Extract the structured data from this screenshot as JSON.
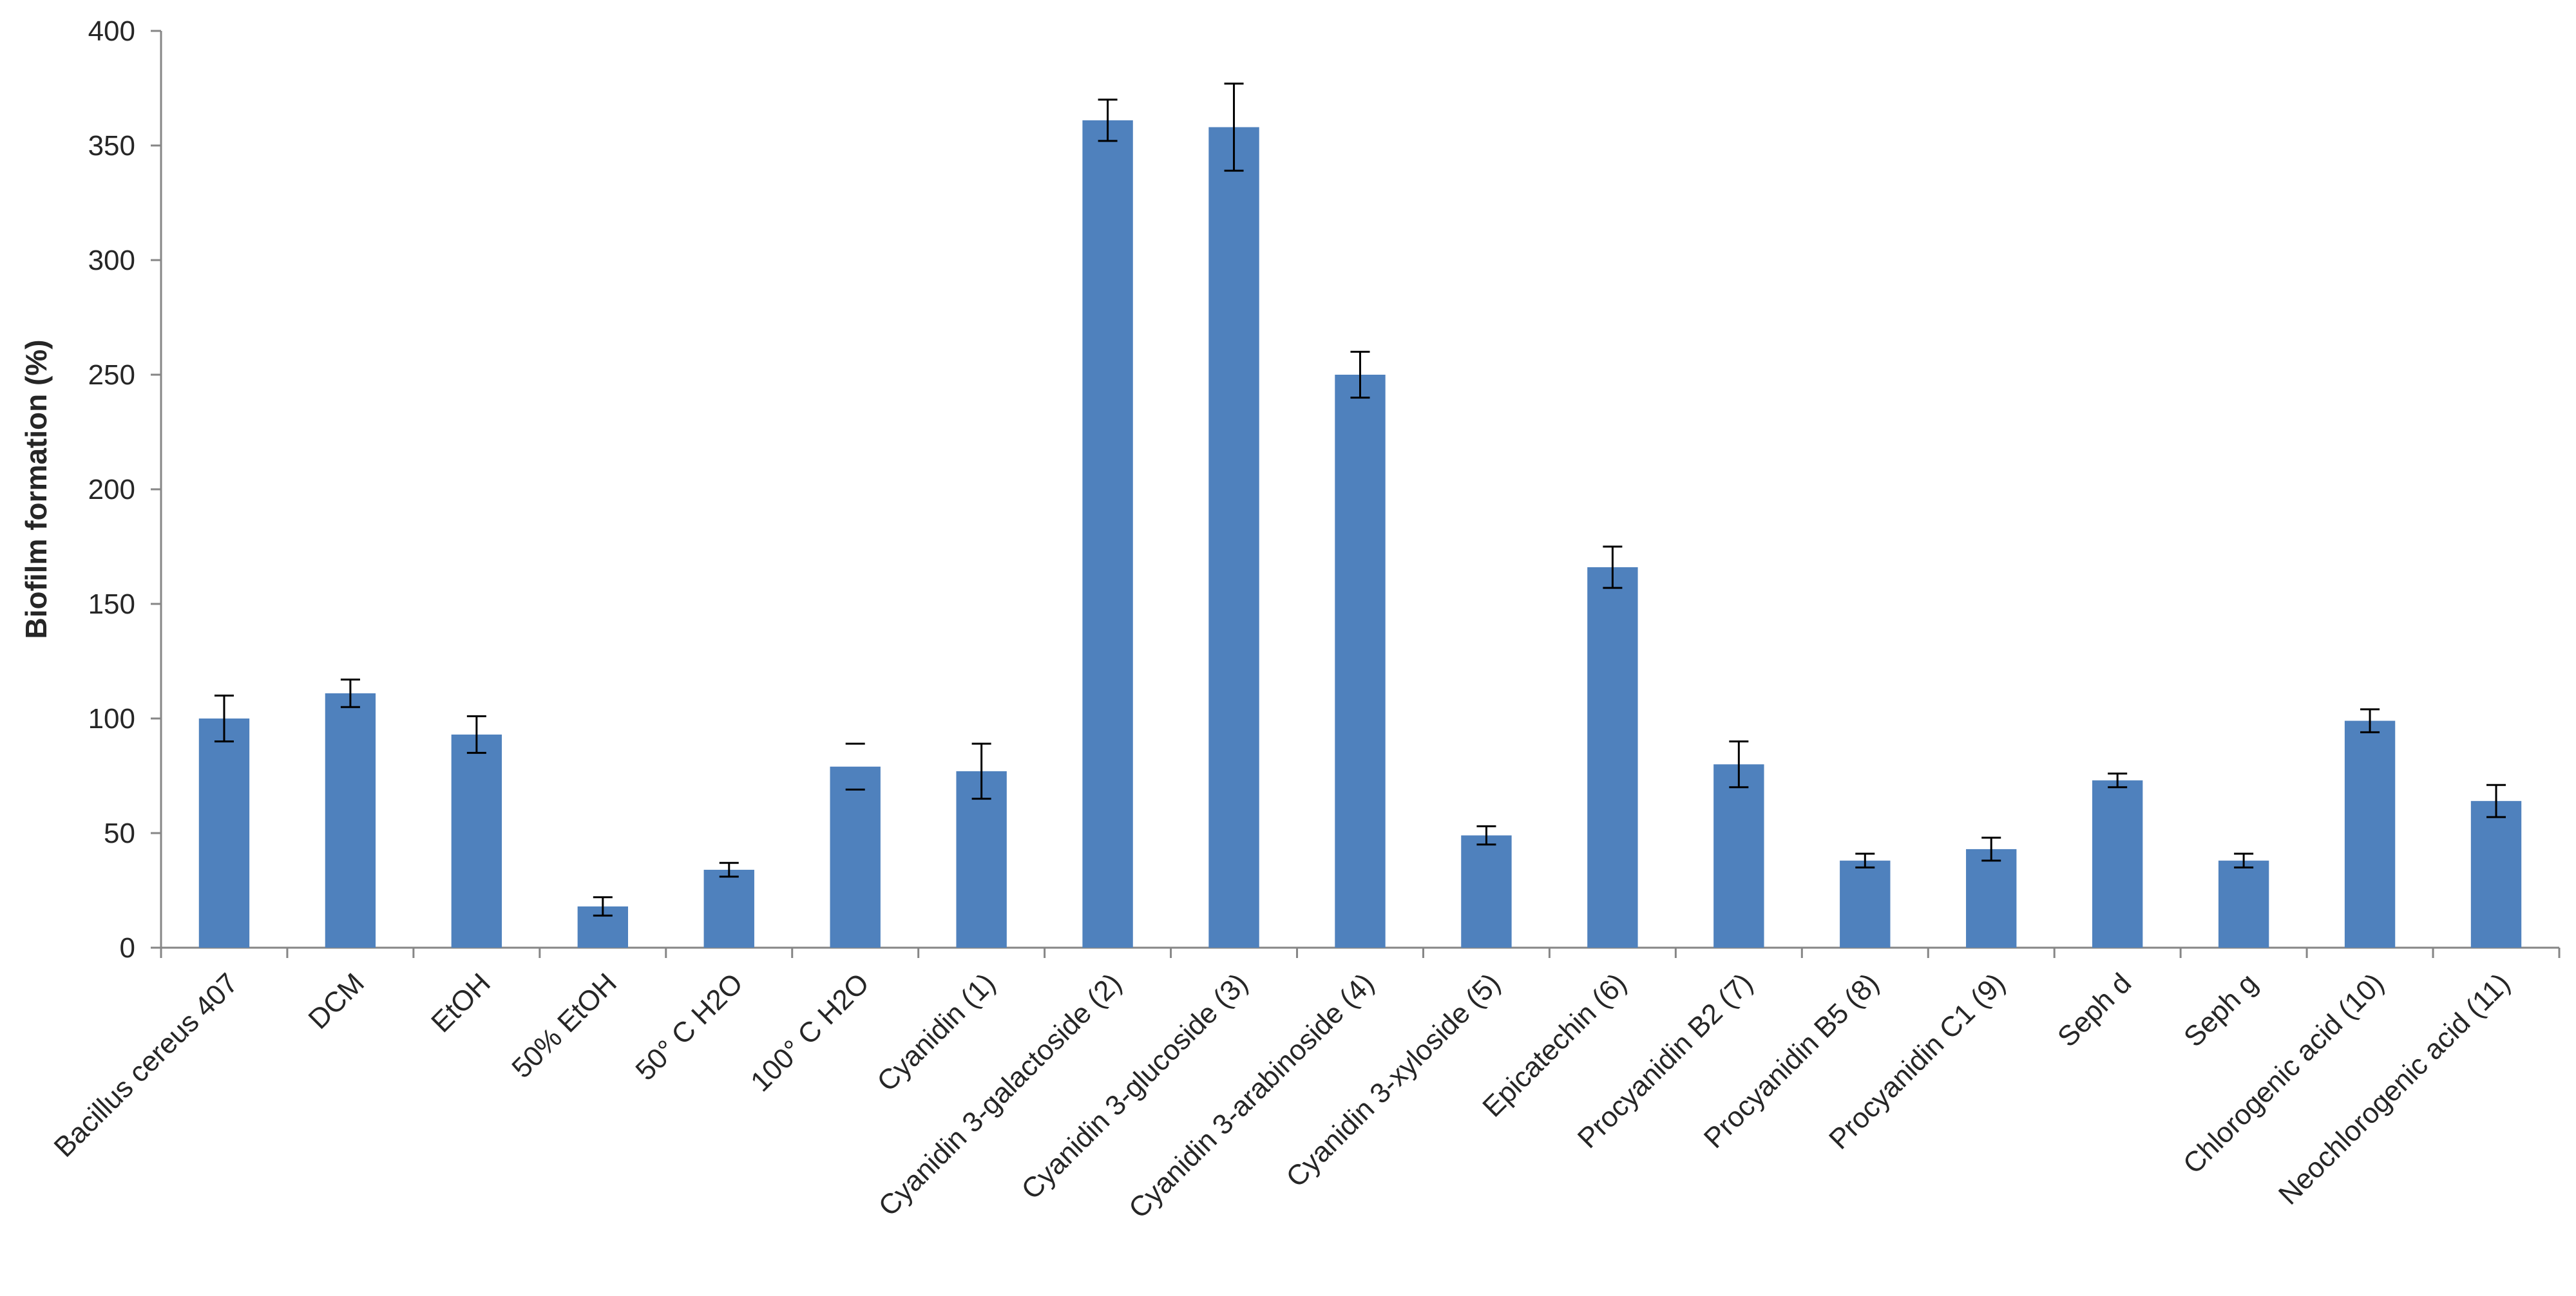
{
  "chart_data": {
    "type": "bar",
    "title": "",
    "xlabel": "",
    "ylabel": "Biofilm formation (%)",
    "ylim": [
      0,
      400
    ],
    "yticks": [
      0,
      50,
      100,
      150,
      200,
      250,
      300,
      350,
      400
    ],
    "grid": false,
    "legend": "none",
    "bar_color": "#4F81BD",
    "categories": [
      "Bacillus cereus 407",
      "DCM",
      "EtOH",
      "50% EtOH",
      "50° C H2O",
      "100° C H2O",
      "Cyanidin (1)",
      "Cyanidin 3-galactoside (2)",
      "Cyanidin 3-glucoside (3)",
      "Cyanidin 3-arabinoside (4)",
      "Cyanidin 3-xyloside (5)",
      "Epicatechin (6)",
      "Procyanidin B2 (7)",
      "Procyanidin B5 (8)",
      "Procyanidin C1 (9)",
      "Seph d",
      "Seph g",
      "Chlorogenic acid (10)",
      "Neochlorogenic acid (11)"
    ],
    "values": [
      100,
      111,
      93,
      18,
      34,
      79,
      77,
      361,
      358,
      250,
      49,
      166,
      80,
      38,
      43,
      73,
      38,
      99,
      64
    ],
    "errors": [
      10,
      6,
      8,
      4,
      3,
      10,
      12,
      9,
      19,
      10,
      4,
      9,
      10,
      3,
      5,
      3,
      3,
      5,
      7
    ],
    "error_bar_caps": [
      true,
      true,
      true,
      true,
      true,
      "detached",
      true,
      true,
      true,
      true,
      true,
      true,
      true,
      true,
      true,
      true,
      true,
      true,
      true
    ]
  }
}
